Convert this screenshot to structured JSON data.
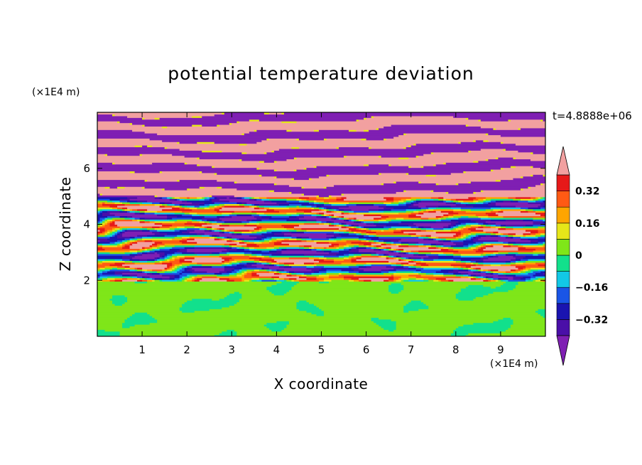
{
  "chart_data": {
    "type": "heatmap",
    "title": "potential temperature deviation",
    "xlabel": "X coordinate",
    "ylabel": "Z coordinate",
    "x_unit": "(×1E4 m)",
    "z_unit": "(×1E4 m)",
    "time_label": "t=4.8888e+06",
    "xlim": [
      0,
      10
    ],
    "zlim": [
      0,
      8
    ],
    "x_ticks": [
      "1",
      "2",
      "3",
      "4",
      "5",
      "6",
      "7",
      "8",
      "9"
    ],
    "z_ticks": [
      "2",
      "4",
      "6"
    ],
    "x_tick_values": [
      1,
      2,
      3,
      4,
      5,
      6,
      7,
      8,
      9
    ],
    "z_tick_values": [
      2,
      4,
      6
    ],
    "colorbar": {
      "levels": [
        -0.48,
        -0.4,
        -0.32,
        -0.24,
        -0.16,
        -0.08,
        0,
        0.08,
        0.16,
        0.24,
        0.32,
        0.4,
        0.48
      ],
      "colors": [
        "#7f1fb3",
        "#4a0fa8",
        "#1a14b0",
        "#1a55e6",
        "#12c8e6",
        "#12e08c",
        "#7fe619",
        "#e6e619",
        "#ffa500",
        "#ff5a14",
        "#e61919",
        "#f2a0a0"
      ],
      "extend_low_color": "#7f1fb3",
      "extend_high_color": "#f2a0a0",
      "tick_labels": [
        "0.32",
        "0.16",
        "0",
        "−0.16",
        "−0.32"
      ],
      "tick_values": [
        0.32,
        0.16,
        0,
        -0.16,
        -0.32
      ]
    }
  }
}
